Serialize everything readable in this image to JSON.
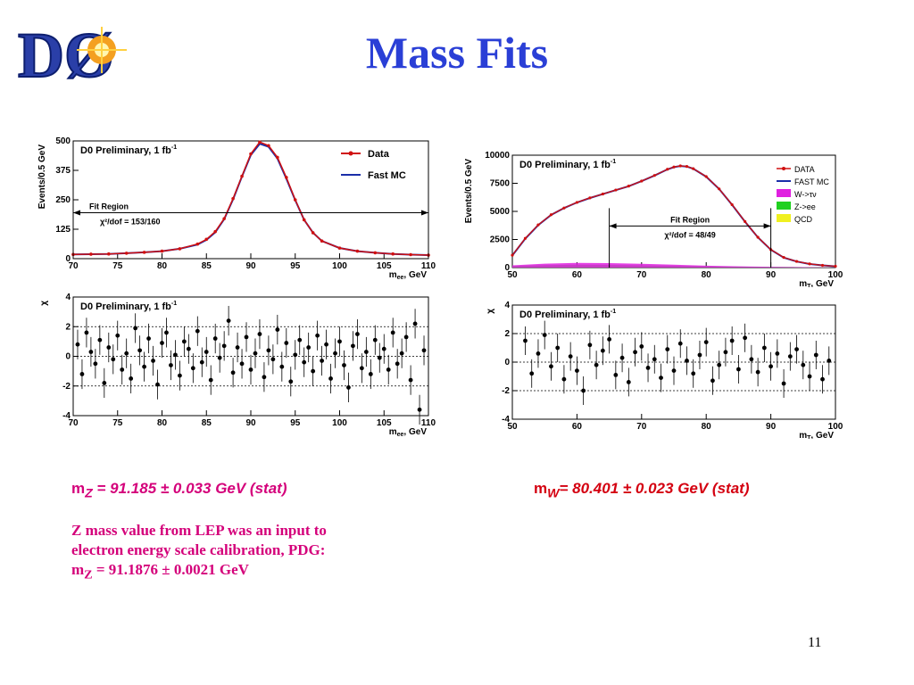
{
  "slide": {
    "title": "Mass Fits",
    "logo_text": "DØ",
    "page_number": "11",
    "results": {
      "z_prefix": "m",
      "z_sub": "Z",
      "z_value": " = 91.185 ± 0.033 GeV (stat)",
      "w_prefix": "m",
      "w_sub": "W",
      "w_value": "= 80.401 ± 0.023 GeV (stat)"
    },
    "note": {
      "line1": "Z mass value from LEP was an input to",
      "line2": "electron energy scale calibration, PDG:",
      "line3_prefix": "m",
      "line3_sub": "Z",
      "line3_value": " = 91.1876 ± 0.0021 GeV"
    }
  },
  "chart_data": [
    {
      "id": "z_mass",
      "type": "line",
      "label": "D0 Preliminary, 1 fb",
      "label_sup": "-1",
      "ylabel": "Events/0.5 GeV",
      "xlabel": "m",
      "xlabel_sub": "ee",
      "xlabel_unit": ", GeV",
      "xlim": [
        70,
        110
      ],
      "ylim": [
        0,
        500
      ],
      "xticks": [
        70,
        75,
        80,
        85,
        90,
        95,
        100,
        105,
        110
      ],
      "yticks": [
        0,
        125,
        250,
        375,
        500
      ],
      "fit_region": [
        70,
        110
      ],
      "fit_region_label": "Fit Region",
      "chi2_label": "χ²/dof = 153/160",
      "legend": [
        "Data",
        "Fast MC"
      ],
      "series": [
        {
          "name": "Data",
          "color": "#d01010",
          "x": [
            70,
            72,
            74,
            76,
            78,
            80,
            82,
            84,
            85,
            86,
            87,
            88,
            89,
            90,
            91,
            92,
            93,
            94,
            95,
            96,
            97,
            98,
            100,
            102,
            104,
            106,
            108,
            110
          ],
          "y": [
            18,
            19,
            20,
            23,
            27,
            32,
            42,
            62,
            82,
            115,
            170,
            255,
            350,
            445,
            495,
            480,
            430,
            345,
            250,
            165,
            110,
            75,
            45,
            32,
            25,
            20,
            17,
            15
          ]
        },
        {
          "name": "Fast MC",
          "color": "#1a2ea8",
          "x": [
            70,
            72,
            74,
            76,
            78,
            80,
            82,
            84,
            85,
            86,
            87,
            88,
            89,
            90,
            91,
            92,
            93,
            94,
            95,
            96,
            97,
            98,
            100,
            102,
            104,
            106,
            108,
            110
          ],
          "y": [
            18,
            19,
            20,
            23,
            27,
            32,
            42,
            60,
            80,
            112,
            168,
            252,
            348,
            440,
            488,
            475,
            425,
            340,
            248,
            165,
            110,
            75,
            45,
            32,
            25,
            20,
            17,
            15
          ]
        }
      ]
    },
    {
      "id": "w_mt",
      "type": "area",
      "label": "D0 Preliminary, 1 fb",
      "label_sup": "-1",
      "ylabel": "Events/0.5 GeV",
      "xlabel": "m",
      "xlabel_sub": "T",
      "xlabel_unit": ", GeV",
      "xlim": [
        50,
        100
      ],
      "ylim": [
        0,
        10000
      ],
      "xticks": [
        50,
        60,
        70,
        80,
        90,
        100
      ],
      "yticks": [
        0,
        2500,
        5000,
        7500,
        10000
      ],
      "fit_region": [
        65,
        90
      ],
      "fit_region_label": "Fit Region",
      "chi2_label": "χ²/dof = 48/49",
      "legend": [
        "DATA",
        "FAST MC",
        "W->τν",
        "Z->ee",
        "QCD"
      ],
      "series": [
        {
          "name": "DATA",
          "color": "#d01010",
          "x": [
            50,
            52,
            54,
            56,
            58,
            60,
            62,
            64,
            66,
            68,
            70,
            72,
            74,
            75,
            76,
            77,
            78,
            80,
            82,
            84,
            86,
            88,
            90,
            92,
            94,
            96,
            98,
            100
          ],
          "y": [
            1100,
            2600,
            3800,
            4700,
            5300,
            5800,
            6200,
            6550,
            6900,
            7250,
            7700,
            8200,
            8750,
            8950,
            9050,
            9000,
            8800,
            8100,
            7000,
            5600,
            4100,
            2700,
            1600,
            900,
            550,
            330,
            200,
            120
          ]
        },
        {
          "name": "FAST MC",
          "color": "#1a2ea8",
          "x": [
            50,
            52,
            54,
            56,
            58,
            60,
            62,
            64,
            66,
            68,
            70,
            72,
            74,
            75,
            76,
            77,
            78,
            80,
            82,
            84,
            86,
            88,
            90,
            92,
            94,
            96,
            98,
            100
          ],
          "y": [
            1080,
            2580,
            3780,
            4680,
            5290,
            5790,
            6190,
            6540,
            6890,
            7240,
            7690,
            8190,
            8740,
            8940,
            9040,
            8990,
            8790,
            8090,
            6990,
            5590,
            4090,
            2690,
            1590,
            890,
            540,
            320,
            195,
            115
          ]
        },
        {
          "name": "W->τν",
          "color": "#e020e0",
          "x": [
            50,
            55,
            60,
            65,
            70,
            75,
            80,
            85,
            90,
            95,
            100
          ],
          "y": [
            200,
            350,
            420,
            400,
            330,
            250,
            170,
            110,
            70,
            40,
            20
          ]
        },
        {
          "name": "Z->ee",
          "color": "#20d020",
          "x": [
            50,
            55,
            60,
            65,
            70,
            75,
            80,
            85,
            90,
            95,
            100
          ],
          "y": [
            140,
            220,
            260,
            240,
            200,
            160,
            120,
            90,
            60,
            40,
            25
          ]
        },
        {
          "name": "QCD",
          "color": "#f0f020",
          "x": [
            50,
            55,
            60,
            65,
            70,
            75,
            80,
            85,
            90,
            95,
            100
          ],
          "y": [
            80,
            120,
            130,
            120,
            100,
            80,
            60,
            45,
            30,
            20,
            12
          ]
        }
      ]
    },
    {
      "id": "z_chi",
      "type": "scatter",
      "label": "D0 Preliminary, 1 fb",
      "label_sup": "-1",
      "ylabel": "χ",
      "xlabel": "m",
      "xlabel_sub": "ee",
      "xlabel_unit": ", GeV",
      "xlim": [
        70,
        110
      ],
      "ylim": [
        -4,
        4
      ],
      "xticks": [
        70,
        75,
        80,
        85,
        90,
        95,
        100,
        105,
        110
      ],
      "yticks": [
        -4,
        -2,
        0,
        2,
        4
      ],
      "reference_lines": [
        -2,
        0,
        2
      ],
      "x": [
        70.5,
        71,
        71.5,
        72,
        72.5,
        73,
        73.5,
        74,
        74.5,
        75,
        75.5,
        76,
        76.5,
        77,
        77.5,
        78,
        78.5,
        79,
        79.5,
        80,
        80.5,
        81,
        81.5,
        82,
        82.5,
        83,
        83.5,
        84,
        84.5,
        85,
        85.5,
        86,
        86.5,
        87,
        87.5,
        88,
        88.5,
        89,
        89.5,
        90,
        90.5,
        91,
        91.5,
        92,
        92.5,
        93,
        93.5,
        94,
        94.5,
        95,
        95.5,
        96,
        96.5,
        97,
        97.5,
        98,
        98.5,
        99,
        99.5,
        100,
        100.5,
        101,
        101.5,
        102,
        102.5,
        103,
        103.5,
        104,
        104.5,
        105,
        105.5,
        106,
        106.5,
        107,
        107.5,
        108,
        108.5,
        109,
        109.5
      ],
      "y": [
        0.8,
        -1.2,
        1.6,
        0.3,
        -0.5,
        1.1,
        -1.8,
        0.6,
        -0.2,
        1.4,
        -0.9,
        0.2,
        -1.5,
        1.9,
        0.4,
        -0.7,
        1.2,
        -0.3,
        -1.9,
        0.9,
        1.6,
        -0.6,
        0.1,
        -1.3,
        1.0,
        0.5,
        -0.8,
        1.7,
        -0.4,
        0.3,
        -1.6,
        1.2,
        -0.1,
        0.7,
        2.4,
        -1.1,
        0.6,
        -0.5,
        1.3,
        -0.9,
        0.2,
        1.5,
        -1.4,
        0.4,
        -0.2,
        1.8,
        -0.7,
        0.9,
        -1.7,
        0.1,
        1.1,
        -0.4,
        0.6,
        -1.0,
        1.4,
        -0.3,
        0.8,
        -1.5,
        0.2,
        1.0,
        -0.6,
        -2.1,
        0.7,
        1.5,
        -0.8,
        0.3,
        -1.2,
        1.1,
        -0.1,
        0.5,
        -0.9,
        1.6,
        -0.5,
        0.2,
        1.3,
        -1.6,
        2.2,
        -3.6,
        0.4
      ]
    },
    {
      "id": "w_chi",
      "type": "scatter",
      "label": "D0 Preliminary, 1 fb",
      "label_sup": "-1",
      "ylabel": "χ",
      "xlabel": "m",
      "xlabel_sub": "T",
      "xlabel_unit": ", GeV",
      "xlim": [
        50,
        100
      ],
      "ylim": [
        -4,
        4
      ],
      "xticks": [
        50,
        60,
        70,
        80,
        90,
        100
      ],
      "yticks": [
        -4,
        -2,
        0,
        2,
        4
      ],
      "reference_lines": [
        -2,
        0,
        2
      ],
      "x": [
        52,
        53,
        54,
        55,
        56,
        57,
        58,
        59,
        60,
        61,
        62,
        63,
        64,
        65,
        66,
        67,
        68,
        69,
        70,
        71,
        72,
        73,
        74,
        75,
        76,
        77,
        78,
        79,
        80,
        81,
        82,
        83,
        84,
        85,
        86,
        87,
        88,
        89,
        90,
        91,
        92,
        93,
        94,
        95,
        96,
        97,
        98,
        99
      ],
      "y": [
        1.5,
        -0.8,
        0.6,
        1.9,
        -0.3,
        1.0,
        -1.2,
        0.4,
        -0.6,
        -2.0,
        1.2,
        -0.2,
        0.8,
        1.6,
        -0.9,
        0.3,
        -1.4,
        0.7,
        1.1,
        -0.4,
        0.2,
        -1.1,
        0.9,
        -0.6,
        1.3,
        0.1,
        -0.8,
        0.5,
        1.4,
        -1.3,
        -0.2,
        0.7,
        1.5,
        -0.5,
        1.7,
        0.2,
        -0.7,
        1.0,
        -0.3,
        0.6,
        -1.5,
        0.4,
        0.9,
        -0.2,
        -1.0,
        0.5,
        -1.2,
        0.1
      ]
    }
  ]
}
